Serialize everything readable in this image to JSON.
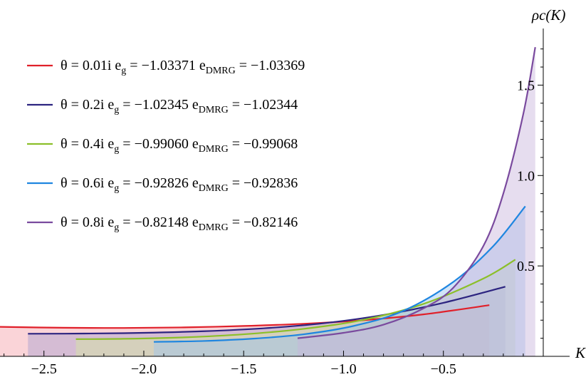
{
  "chart_data": {
    "type": "area",
    "title": "",
    "xlabel": "K",
    "ylabel": "ρc(K)",
    "xlim": [
      -2.72,
      0.05
    ],
    "ylim": [
      0.0,
      1.75
    ],
    "x_ticks": [
      -2.5,
      -2.0,
      -1.5,
      -1.0,
      -0.5
    ],
    "x_tick_labels": [
      "−2.5",
      "−2.0",
      "−1.5",
      "−1.0",
      "−0.5"
    ],
    "y_ticks": [
      0.5,
      1.0,
      1.5
    ],
    "y_tick_labels": [
      "0.5",
      "1.0",
      "1.5"
    ],
    "grid": false,
    "legend_position": "top-left",
    "series": [
      {
        "name": "θ = 0.01i",
        "eg": "−1.03371",
        "edmrg": "−1.03369",
        "color": "#e0202a",
        "fill": "#f4a0a8",
        "x": [
          -2.72,
          -2.4,
          -2.1,
          -1.8,
          -1.5,
          -1.2,
          -0.9,
          -0.6,
          -0.27
        ],
        "y": [
          0.163,
          0.158,
          0.157,
          0.16,
          0.168,
          0.18,
          0.2,
          0.232,
          0.283
        ]
      },
      {
        "name": "θ = 0.2i",
        "eg": "−1.02345",
        "edmrg": "−1.02344",
        "color": "#2c2480",
        "fill": "#a8a0d0",
        "x": [
          -2.58,
          -2.3,
          -2.0,
          -1.7,
          -1.4,
          -1.1,
          -0.8,
          -0.5,
          -0.19
        ],
        "y": [
          0.125,
          0.126,
          0.13,
          0.139,
          0.155,
          0.183,
          0.229,
          0.296,
          0.385
        ]
      },
      {
        "name": "θ = 0.4i",
        "eg": "−0.99060",
        "edmrg": "−0.99068",
        "color": "#8cbf2a",
        "fill": "#d4e8a0",
        "x": [
          -2.34,
          -2.1,
          -1.8,
          -1.5,
          -1.2,
          -0.9,
          -0.6,
          -0.3,
          -0.14
        ],
        "y": [
          0.095,
          0.097,
          0.105,
          0.122,
          0.152,
          0.202,
          0.29,
          0.43,
          0.535
        ]
      },
      {
        "name": "θ = 0.6i",
        "eg": "−0.92826",
        "edmrg": "−0.92836",
        "color": "#1f86e0",
        "fill": "#98c4f0",
        "x": [
          -1.95,
          -1.7,
          -1.45,
          -1.2,
          -0.95,
          -0.7,
          -0.45,
          -0.25,
          -0.09
        ],
        "y": [
          0.08,
          0.085,
          0.098,
          0.122,
          0.168,
          0.252,
          0.412,
          0.61,
          0.83
        ]
      },
      {
        "name": "θ = 0.8i",
        "eg": "−0.82148",
        "edmrg": "−0.82146",
        "color": "#7a4a9e",
        "fill": "#c8b4dc",
        "x": [
          -1.23,
          -1.0,
          -0.8,
          -0.6,
          -0.45,
          -0.3,
          -0.2,
          -0.1,
          -0.04
        ],
        "y": [
          0.1,
          0.13,
          0.175,
          0.265,
          0.38,
          0.61,
          0.9,
          1.34,
          1.71
        ]
      }
    ]
  }
}
